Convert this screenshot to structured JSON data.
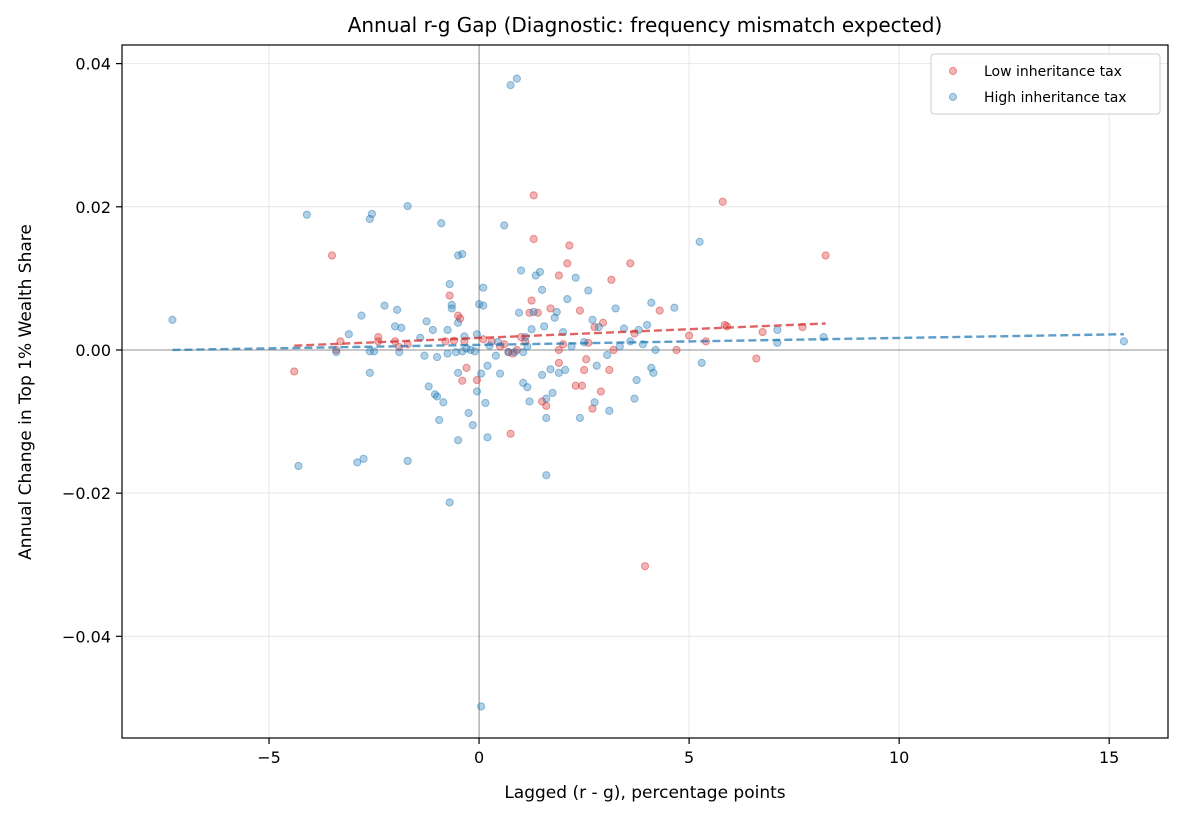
{
  "chart_data": {
    "type": "scatter",
    "title": "Annual r-g Gap (Diagnostic: frequency mismatch expected)",
    "xlabel": "Lagged (r - g), percentage points",
    "ylabel": "Annual Change in Top 1% Wealth Share",
    "xlim": [
      -8.5,
      16.4
    ],
    "ylim": [
      -0.0542,
      0.0426
    ],
    "x_ticks": [
      -5,
      0,
      5,
      10,
      15
    ],
    "x_tick_labels": [
      "−5",
      "0",
      "5",
      "10",
      "15"
    ],
    "y_ticks": [
      -0.04,
      -0.02,
      0.0,
      0.02,
      0.04
    ],
    "y_tick_labels": [
      "−0.04",
      "−0.02",
      "0.00",
      "0.02",
      "0.04"
    ],
    "grid": true,
    "reference_lines": {
      "x": 0,
      "y": 0
    },
    "legend_position": "top-right",
    "series": [
      {
        "name": "Low inheritance tax",
        "color": "#d62728",
        "points": [
          [
            -4.4,
            -0.003
          ],
          [
            -3.5,
            0.0132
          ],
          [
            -3.4,
            0.0
          ],
          [
            -3.3,
            0.0012
          ],
          [
            -2.4,
            0.0018
          ],
          [
            -2.4,
            0.0012
          ],
          [
            -2.0,
            0.0012
          ],
          [
            -1.9,
            0.0004
          ],
          [
            -1.7,
            0.0008
          ],
          [
            -0.8,
            0.0012
          ],
          [
            -0.7,
            0.0076
          ],
          [
            -0.6,
            0.0013
          ],
          [
            -0.5,
            0.0048
          ],
          [
            -0.45,
            0.0044
          ],
          [
            -0.4,
            -0.0043
          ],
          [
            -0.35,
            0.0012
          ],
          [
            -0.3,
            -0.0025
          ],
          [
            -0.05,
            -0.0042
          ],
          [
            0.1,
            0.0015
          ],
          [
            0.3,
            0.0012
          ],
          [
            0.5,
            0.0005
          ],
          [
            0.6,
            0.0008
          ],
          [
            0.7,
            -0.0003
          ],
          [
            0.75,
            -0.0117
          ],
          [
            0.8,
            -0.0005
          ],
          [
            0.9,
            0.0
          ],
          [
            1.0,
            0.0018
          ],
          [
            1.1,
            0.0012
          ],
          [
            1.2,
            0.0052
          ],
          [
            1.25,
            0.0069
          ],
          [
            1.3,
            0.0216
          ],
          [
            1.3,
            0.0155
          ],
          [
            1.4,
            0.0052
          ],
          [
            1.5,
            -0.0072
          ],
          [
            1.6,
            -0.0078
          ],
          [
            1.7,
            0.0058
          ],
          [
            1.9,
            -0.0018
          ],
          [
            1.9,
            0.0
          ],
          [
            1.9,
            0.0104
          ],
          [
            2.0,
            0.0008
          ],
          [
            2.1,
            0.0121
          ],
          [
            2.15,
            0.0146
          ],
          [
            2.3,
            -0.005
          ],
          [
            2.4,
            0.0055
          ],
          [
            2.45,
            -0.005
          ],
          [
            2.5,
            -0.0028
          ],
          [
            2.55,
            -0.0013
          ],
          [
            2.6,
            0.001
          ],
          [
            2.7,
            -0.0082
          ],
          [
            2.75,
            0.0032
          ],
          [
            2.9,
            -0.0058
          ],
          [
            2.95,
            0.0038
          ],
          [
            3.1,
            -0.0028
          ],
          [
            3.15,
            0.0098
          ],
          [
            3.2,
            0.0
          ],
          [
            3.6,
            0.0121
          ],
          [
            3.7,
            0.0023
          ],
          [
            3.95,
            -0.0302
          ],
          [
            4.3,
            0.0055
          ],
          [
            4.7,
            0.0
          ],
          [
            5.0,
            0.002
          ],
          [
            5.4,
            0.0012
          ],
          [
            5.8,
            0.0207
          ],
          [
            5.85,
            0.0035
          ],
          [
            5.9,
            0.0033
          ],
          [
            6.6,
            -0.0012
          ],
          [
            6.75,
            0.0025
          ],
          [
            7.7,
            0.0032
          ],
          [
            8.25,
            0.0132
          ]
        ],
        "trend": {
          "x": [
            -4.4,
            8.25
          ],
          "y": [
            0.0006,
            0.0037
          ]
        }
      },
      {
        "name": "High inheritance tax",
        "color": "#1f77b4",
        "points": [
          [
            -7.3,
            0.0042
          ],
          [
            -4.3,
            -0.0162
          ],
          [
            -4.1,
            0.0189
          ],
          [
            -3.4,
            -0.0003
          ],
          [
            -3.1,
            0.0022
          ],
          [
            -2.9,
            -0.0157
          ],
          [
            -2.8,
            0.0048
          ],
          [
            -2.75,
            -0.0152
          ],
          [
            -2.6,
            -0.0002
          ],
          [
            -2.6,
            0.0183
          ],
          [
            -2.55,
            0.019
          ],
          [
            -2.6,
            -0.0032
          ],
          [
            -2.5,
            -0.0002
          ],
          [
            -2.25,
            0.0062
          ],
          [
            -2.0,
            0.0033
          ],
          [
            -1.95,
            0.0056
          ],
          [
            -1.9,
            -0.0003
          ],
          [
            -1.85,
            0.0031
          ],
          [
            -1.7,
            0.0201
          ],
          [
            -1.7,
            -0.0155
          ],
          [
            -1.4,
            0.0017
          ],
          [
            -1.3,
            -0.0008
          ],
          [
            -1.25,
            0.004
          ],
          [
            -1.2,
            -0.0051
          ],
          [
            -1.1,
            0.0028
          ],
          [
            -1.05,
            -0.0062
          ],
          [
            -1.0,
            -0.0065
          ],
          [
            -1.0,
            -0.001
          ],
          [
            -0.95,
            -0.0098
          ],
          [
            -0.9,
            0.0177
          ],
          [
            -0.85,
            -0.0073
          ],
          [
            -0.75,
            0.0028
          ],
          [
            -0.75,
            -0.0005
          ],
          [
            -0.7,
            0.0092
          ],
          [
            -0.7,
            -0.0213
          ],
          [
            -0.65,
            0.0063
          ],
          [
            -0.65,
            0.0058
          ],
          [
            -0.55,
            -0.0003
          ],
          [
            -0.5,
            0.0038
          ],
          [
            -0.5,
            -0.0032
          ],
          [
            -0.5,
            0.0132
          ],
          [
            -0.5,
            -0.0126
          ],
          [
            -0.4,
            0.0134
          ],
          [
            -0.4,
            -0.0002
          ],
          [
            -0.35,
            0.0019
          ],
          [
            -0.3,
            0.0002
          ],
          [
            -0.25,
            -0.0088
          ],
          [
            -0.2,
            0.0
          ],
          [
            -0.15,
            -0.0105
          ],
          [
            -0.1,
            -0.0002
          ],
          [
            -0.05,
            -0.0058
          ],
          [
            -0.05,
            0.0022
          ],
          [
            0.0,
            0.0064
          ],
          [
            0.05,
            -0.0033
          ],
          [
            0.1,
            0.0087
          ],
          [
            0.1,
            0.0062
          ],
          [
            0.15,
            -0.0074
          ],
          [
            0.2,
            -0.0122
          ],
          [
            0.2,
            -0.0022
          ],
          [
            0.25,
            0.0006
          ],
          [
            0.05,
            -0.0498
          ],
          [
            0.4,
            -0.0008
          ],
          [
            0.45,
            0.0011
          ],
          [
            0.5,
            -0.0033
          ],
          [
            0.6,
            0.0174
          ],
          [
            0.7,
            -0.0003
          ],
          [
            0.75,
            0.037
          ],
          [
            0.9,
            0.0379
          ],
          [
            0.85,
            -0.0003
          ],
          [
            0.95,
            0.0052
          ],
          [
            1.0,
            0.0111
          ],
          [
            1.05,
            -0.0046
          ],
          [
            1.05,
            -0.0003
          ],
          [
            1.1,
            0.0018
          ],
          [
            1.15,
            -0.0052
          ],
          [
            1.15,
            0.0005
          ],
          [
            1.2,
            -0.0072
          ],
          [
            1.25,
            0.0029
          ],
          [
            1.3,
            0.0053
          ],
          [
            1.35,
            0.0104
          ],
          [
            1.45,
            0.0109
          ],
          [
            1.5,
            0.0084
          ],
          [
            1.5,
            -0.0035
          ],
          [
            1.55,
            0.0033
          ],
          [
            1.6,
            -0.0068
          ],
          [
            1.6,
            -0.0095
          ],
          [
            1.6,
            -0.0175
          ],
          [
            1.7,
            -0.0027
          ],
          [
            1.75,
            -0.006
          ],
          [
            1.8,
            0.0045
          ],
          [
            1.85,
            0.0053
          ],
          [
            1.9,
            -0.0032
          ],
          [
            2.0,
            0.0025
          ],
          [
            2.05,
            -0.0028
          ],
          [
            2.1,
            0.0071
          ],
          [
            2.2,
            0.0005
          ],
          [
            2.3,
            0.0101
          ],
          [
            2.4,
            -0.0095
          ],
          [
            2.5,
            0.0011
          ],
          [
            2.6,
            0.0083
          ],
          [
            2.7,
            0.0042
          ],
          [
            2.75,
            -0.0073
          ],
          [
            2.8,
            -0.0022
          ],
          [
            2.85,
            0.0032
          ],
          [
            3.05,
            -0.0007
          ],
          [
            3.1,
            -0.0085
          ],
          [
            3.25,
            0.0058
          ],
          [
            3.35,
            0.0005
          ],
          [
            3.45,
            0.003
          ],
          [
            3.6,
            0.0012
          ],
          [
            3.7,
            -0.0068
          ],
          [
            3.75,
            -0.0042
          ],
          [
            3.8,
            0.0028
          ],
          [
            3.9,
            0.0008
          ],
          [
            4.0,
            0.0035
          ],
          [
            4.1,
            0.0066
          ],
          [
            4.1,
            -0.0025
          ],
          [
            4.15,
            -0.0032
          ],
          [
            4.2,
            0.0
          ],
          [
            4.65,
            0.0059
          ],
          [
            5.25,
            0.0151
          ],
          [
            5.3,
            -0.0018
          ],
          [
            7.1,
            0.0028
          ],
          [
            7.1,
            0.001
          ],
          [
            8.2,
            0.0018
          ],
          [
            15.35,
            0.0012
          ]
        ],
        "trend": {
          "x": [
            -7.3,
            15.35
          ],
          "y": [
            0.0,
            0.0022
          ]
        }
      }
    ]
  }
}
